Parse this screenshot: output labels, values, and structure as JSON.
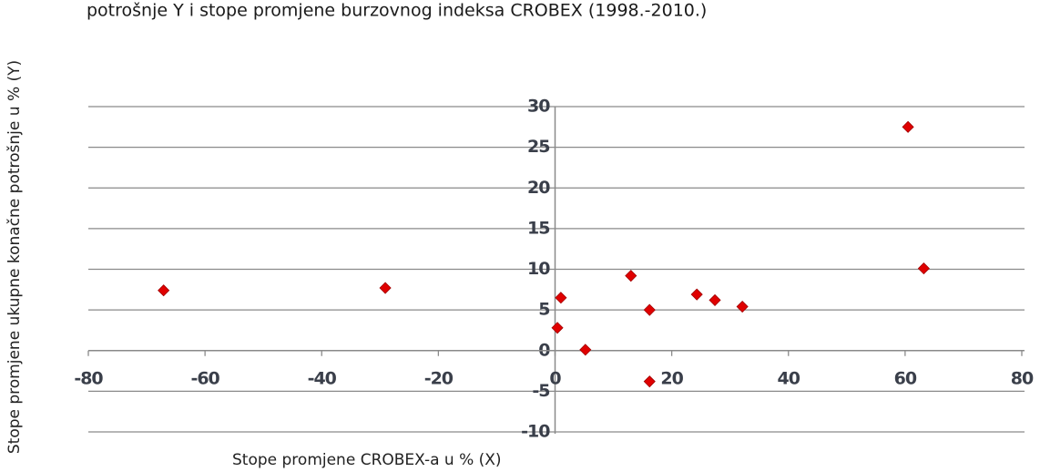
{
  "chart_data": {
    "type": "scatter",
    "title": "potrošnje Y i stope promjene burzovnog indeksa CROBEX   (1998.-2010.)",
    "x_label": "Stope promjene CROBEX-a u % (X)",
    "y_label": "Stope promjene ukupne konačne potrošnje u % (Y)",
    "x": [
      -67.1,
      -29.1,
      1.0,
      0.4,
      5.2,
      13.0,
      16.2,
      16.2,
      24.3,
      27.4,
      32.1,
      60.5,
      63.2
    ],
    "y": [
      7.4,
      7.7,
      6.5,
      2.8,
      0.1,
      9.2,
      5.0,
      -3.8,
      6.9,
      6.2,
      5.4,
      27.5,
      10.1
    ],
    "color": "#e00000",
    "xlim": [
      -80,
      80
    ],
    "xticks": [
      -80,
      -60,
      -40,
      -20,
      0,
      20,
      40,
      60,
      80
    ],
    "ylim": [
      -10,
      30
    ],
    "yticks": [
      -10,
      -5,
      0,
      5,
      10,
      15,
      20,
      25,
      30
    ],
    "grid": true
  }
}
